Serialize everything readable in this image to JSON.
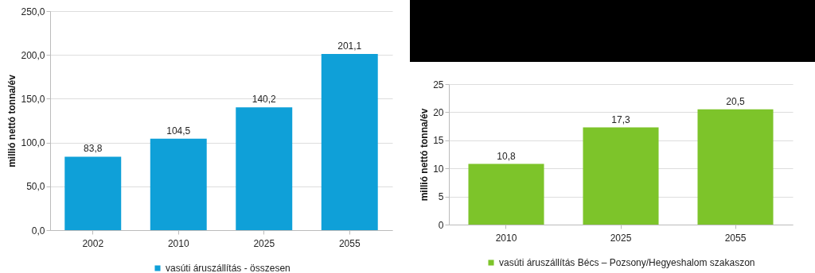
{
  "chart_data": [
    {
      "type": "bar",
      "ylabel": "millió nettó tonna/év",
      "categories": [
        "2002",
        "2010",
        "2025",
        "2055"
      ],
      "series": [
        {
          "name": "vasúti áruszállítás - összesen",
          "color": "#0fa0d8",
          "values": [
            83.8,
            104.5,
            140.2,
            201.1
          ]
        }
      ],
      "value_labels": [
        "83,8",
        "104,5",
        "140,2",
        "201,1"
      ],
      "ylim": [
        0,
        250
      ],
      "yticks": [
        {
          "value": 0,
          "label": "0,0"
        },
        {
          "value": 50,
          "label": "50,0"
        },
        {
          "value": 100,
          "label": "100,0"
        },
        {
          "value": 150,
          "label": "150,0"
        },
        {
          "value": 200,
          "label": "200,0"
        },
        {
          "value": 250,
          "label": "250,0"
        }
      ],
      "grid": "y",
      "legend": "bottom"
    },
    {
      "type": "bar",
      "ylabel": "millió nettó tonna/év",
      "categories": [
        "2010",
        "2025",
        "2055"
      ],
      "series": [
        {
          "name": "vasúti áruszállítás Bécs – Pozsony/Hegyeshalom szakaszon",
          "color": "#7dc42a",
          "values": [
            10.8,
            17.3,
            20.5
          ]
        }
      ],
      "value_labels": [
        "10,8",
        "17,3",
        "20,5"
      ],
      "ylim": [
        0,
        25
      ],
      "yticks": [
        0,
        5,
        10,
        15,
        20,
        25
      ],
      "grid": "y",
      "legend": "bottom"
    }
  ]
}
